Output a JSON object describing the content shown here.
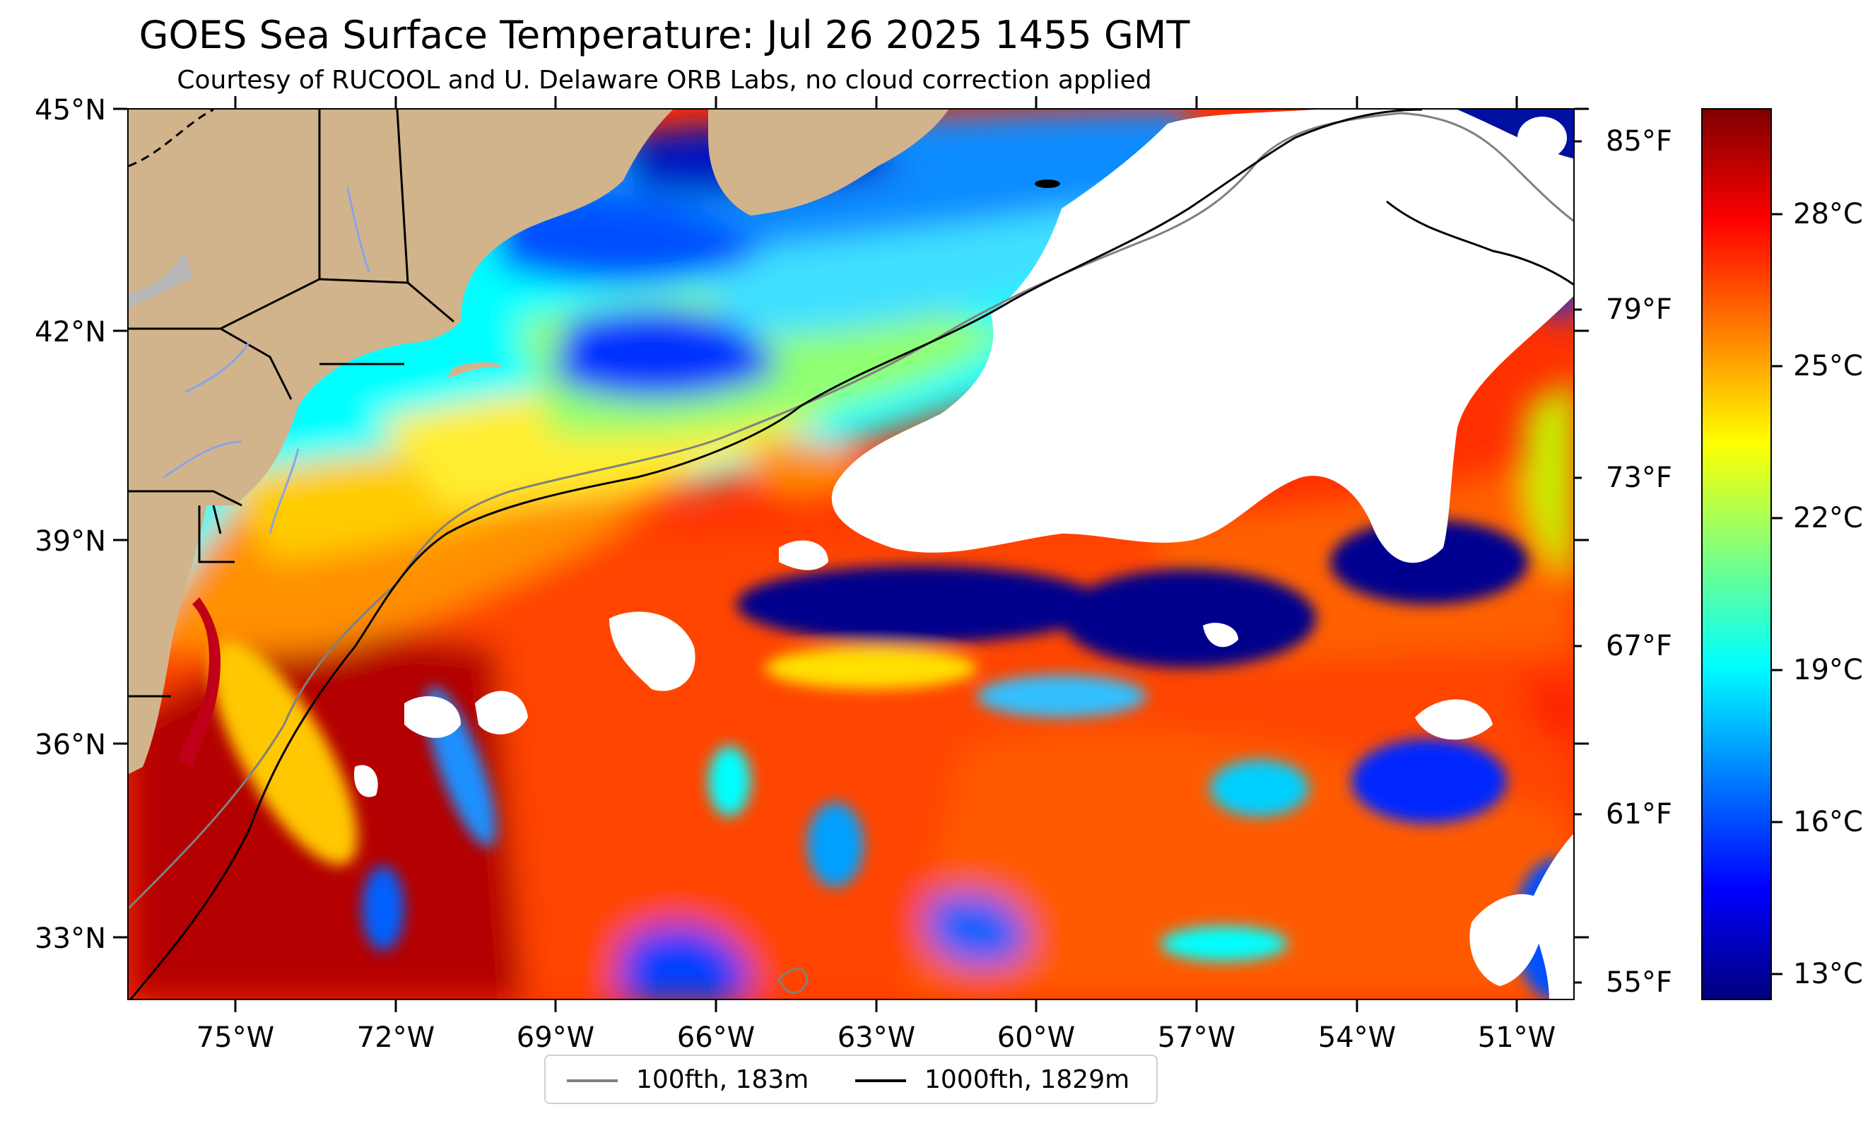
{
  "title": "GOES Sea Surface Temperature: Jul 26 2025 1455 GMT",
  "subtitle": "Courtesy of RUCOOL and U. Delaware ORB Labs, no cloud correction applied",
  "lat_labels": [
    "45°N",
    "42°N",
    "39°N",
    "36°N",
    "33°N"
  ],
  "lon_labels": [
    "75°W",
    "72°W",
    "69°W",
    "66°W",
    "63°W",
    "60°W",
    "57°W",
    "54°W",
    "51°W"
  ],
  "fahrenheit_labels": [
    "85°F",
    "79°F",
    "73°F",
    "67°F",
    "61°F",
    "55°F"
  ],
  "celsius_labels": [
    "28°C",
    "25°C",
    "22°C",
    "19°C",
    "16°C",
    "13°C"
  ],
  "legend": {
    "items": [
      {
        "label": "100fth, 183m",
        "color": "#808080"
      },
      {
        "label": "1000fth, 1829m",
        "color": "#000000"
      }
    ]
  },
  "colors": {
    "land": "#d2b48c",
    "cloud_mask": "#ffffff",
    "colormap": [
      "#00007f",
      "#0000ff",
      "#007fff",
      "#00ffff",
      "#7fff7f",
      "#ffff00",
      "#ff7f00",
      "#ff0000",
      "#7f0000"
    ]
  }
}
